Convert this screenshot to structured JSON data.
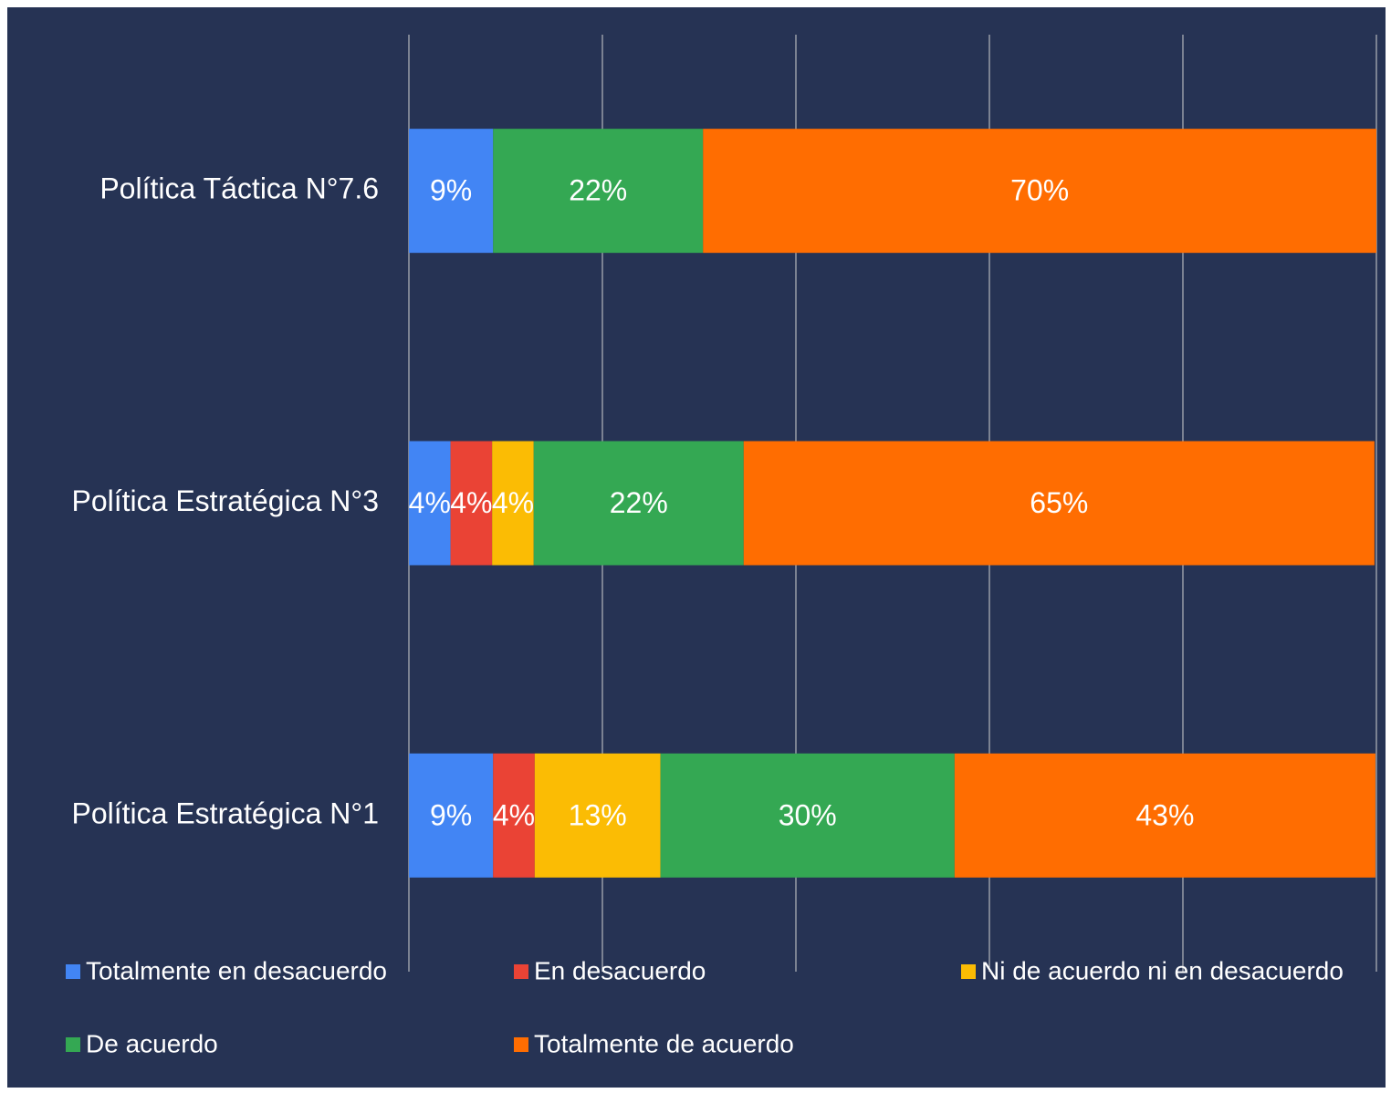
{
  "chart_data": {
    "type": "stacked_barh",
    "categories": [
      "Política Táctica N°7.6",
      "Política Estratégica N°3",
      "Política Estratégica N°1"
    ],
    "series": [
      {
        "name": "Totalmente en desacuerdo",
        "color": "#4285f4",
        "values": [
          8.7,
          4.3,
          8.7
        ],
        "value_labels": [
          "9%",
          "4%",
          "9%"
        ]
      },
      {
        "name": "En desacuerdo",
        "color": "#ea4335",
        "values": [
          0,
          4.3,
          4.3
        ],
        "value_labels": [
          null,
          "4%",
          "4%"
        ]
      },
      {
        "name": "Ni de acuerdo ni en desacuerdo",
        "color": "#fbbc04",
        "values": [
          0,
          4.3,
          13.0
        ],
        "value_labels": [
          null,
          "4%",
          "13%"
        ]
      },
      {
        "name": "De acuerdo",
        "color": "#34a853",
        "values": [
          21.7,
          21.7,
          30.4
        ],
        "value_labels": [
          "22%",
          "22%",
          "30%"
        ]
      },
      {
        "name": "Totalmente de acuerdo",
        "color": "#ff6d01",
        "values": [
          69.6,
          65.2,
          43.5
        ],
        "value_labels": [
          "70%",
          "65%",
          "43%"
        ]
      }
    ],
    "xlim": [
      0,
      100
    ],
    "xticks": [
      0,
      20,
      40,
      60,
      80,
      100
    ],
    "grid": true,
    "legend": "bottom"
  }
}
